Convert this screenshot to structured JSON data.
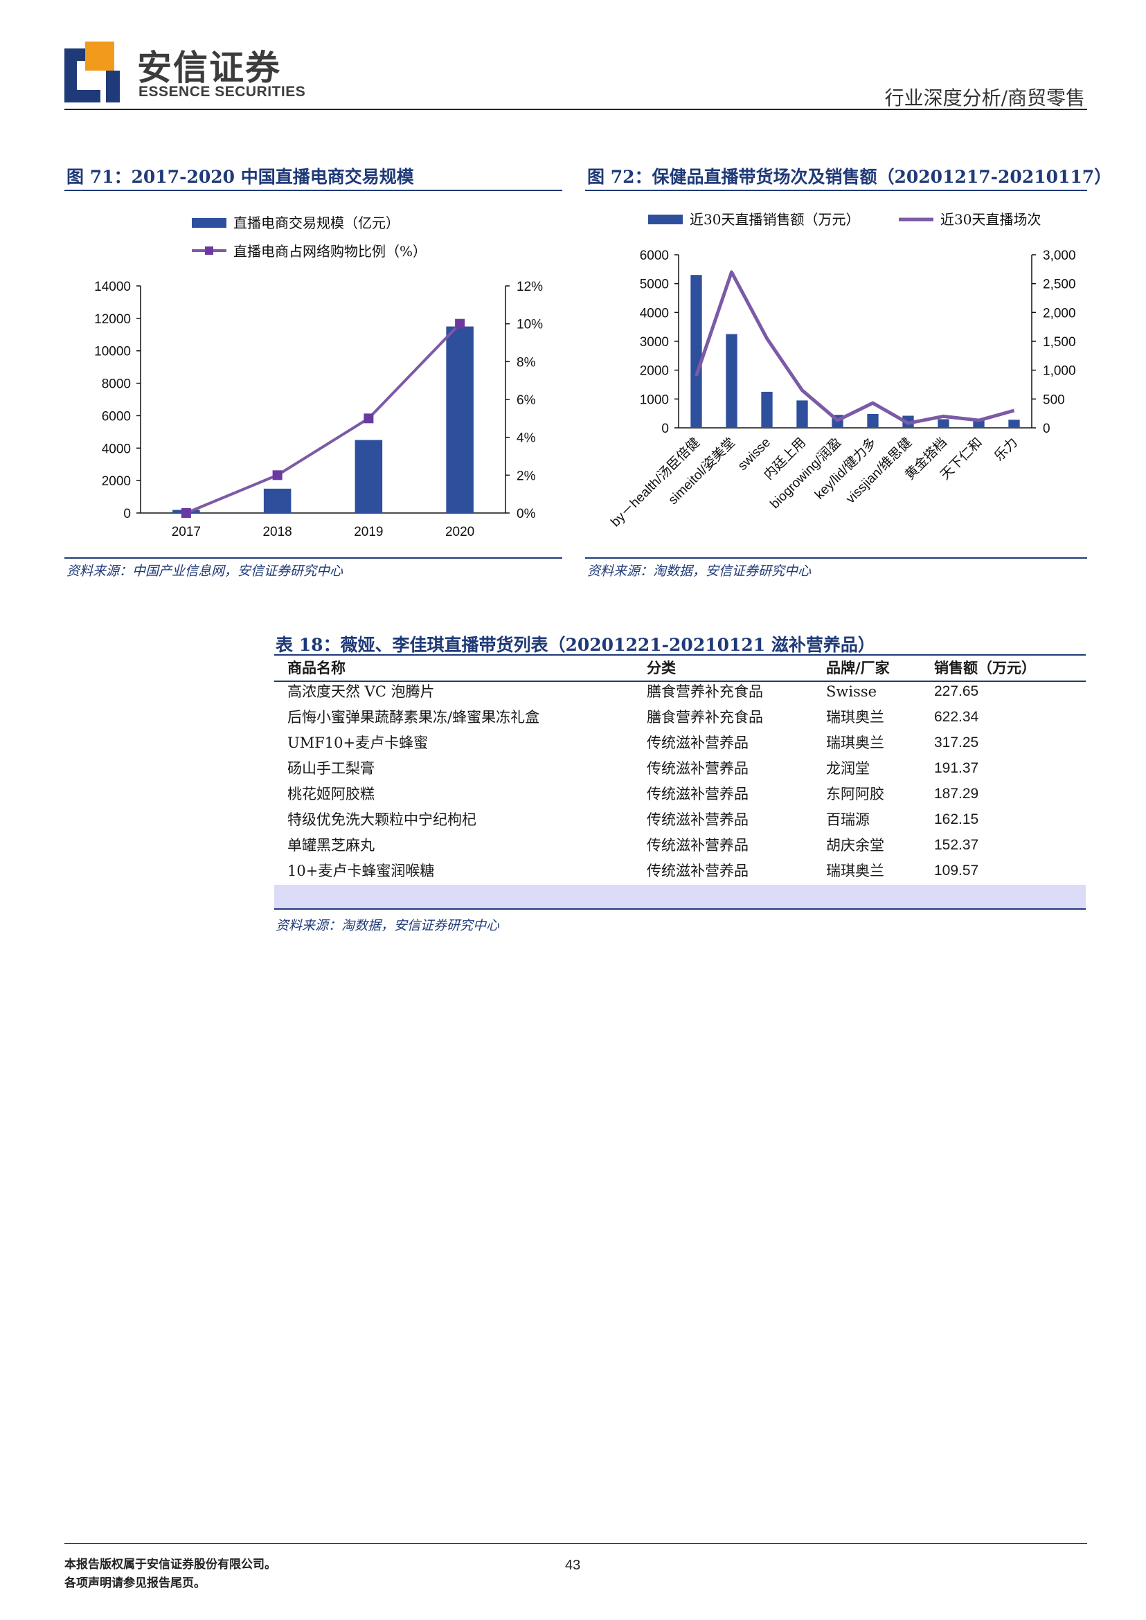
{
  "header": {
    "brand_cn": "安信证券",
    "brand_en": "ESSENCE SECURITIES",
    "category": "行业深度分析/商贸零售",
    "colors": {
      "logo_blue": "#1f3a78",
      "logo_orange": "#f29a1b"
    }
  },
  "figure71": {
    "title": "图 71：2017-2020 中国直播电商交易规模",
    "source": "资料来源：中国产业信息网，安信证券研究中心"
  },
  "figure72": {
    "title": "图 72：保健品直播带货场次及销售额（20201217-20210117）",
    "source": "资料来源：淘数据，安信证券研究中心"
  },
  "table18": {
    "title": "表 18：薇娅、李佳琪直播带货列表（20201221-20210121 滋补营养品）",
    "headers": [
      "商品名称",
      "分类",
      "品牌/厂家",
      "销售额（万元）"
    ],
    "rows": [
      [
        "高浓度天然 VC 泡腾片",
        "膳食营养补充食品",
        "Swisse",
        "227.65"
      ],
      [
        "后悔小蜜弹果蔬酵素果冻/蜂蜜果冻礼盒",
        "膳食营养补充食品",
        "瑞琪奥兰",
        "622.34"
      ],
      [
        "UMF10+麦卢卡蜂蜜",
        "传统滋补营养品",
        "瑞琪奥兰",
        "317.25"
      ],
      [
        "砀山手工梨膏",
        "传统滋补营养品",
        "龙润堂",
        "191.37"
      ],
      [
        "桃花姬阿胶糕",
        "传统滋补营养品",
        "东阿阿胶",
        "187.29"
      ],
      [
        "特级优免洗大颗粒中宁纪枸杞",
        "传统滋补营养品",
        "百瑞源",
        "162.15"
      ],
      [
        "单罐黑芝麻丸",
        "传统滋补营养品",
        "胡庆余堂",
        "152.37"
      ],
      [
        "10+麦卢卡蜂蜜润喉糖",
        "传统滋补营养品",
        "瑞琪奥兰",
        "109.57"
      ]
    ],
    "source": "资料来源：淘数据，安信证券研究中心",
    "colors": {
      "rule": "#1f3a78",
      "total_band": "#dcdcf8"
    }
  },
  "footer": {
    "line1": "本报告版权属于安信证券股份有限公司。",
    "line2": "各项声明请参见报告尾页。",
    "page": "43"
  },
  "chart_data": [
    {
      "type": "bar+line",
      "categories": [
        "2017",
        "2018",
        "2019",
        "2020"
      ],
      "series": [
        {
          "name": "直播电商交易规模（亿元）",
          "type": "bar",
          "axis": "left",
          "values": [
            190,
            1500,
            4500,
            11500
          ],
          "color": "#2e4f9c"
        },
        {
          "name": "直播电商占网络购物比例（%）",
          "type": "line",
          "axis": "right",
          "values": [
            0.0,
            2.0,
            5.0,
            10.0
          ],
          "color": "#7b5aa6"
        }
      ],
      "y_left": {
        "ticks": [
          "0",
          "2000",
          "4000",
          "6000",
          "8000",
          "10000",
          "12000",
          "14000"
        ],
        "min": 0,
        "max": 14000
      },
      "y_right": {
        "ticks": [
          "0%",
          "2%",
          "4%",
          "6%",
          "8%",
          "10%",
          "12%"
        ],
        "min": 0,
        "max": 12
      },
      "grid": false,
      "legend_position": "top"
    },
    {
      "type": "bar+line",
      "categories": [
        "by－health/汤臣倍健",
        "simeitol/姿美堂",
        "swisse",
        "内廷上用",
        "biogrowing/润盈",
        "key/lid/健力多",
        "vissjian/维思健",
        "黄金搭档",
        "天下仁和",
        "乐力"
      ],
      "series": [
        {
          "name": "近30天直播销售额（万元）",
          "type": "bar",
          "axis": "left",
          "values": [
            5300,
            3250,
            1250,
            950,
            450,
            480,
            420,
            300,
            260,
            280
          ],
          "color": "#2e4f9c"
        },
        {
          "name": "近30天直播场次",
          "type": "line",
          "axis": "right",
          "values": [
            900,
            2700,
            1550,
            650,
            130,
            430,
            80,
            200,
            130,
            300
          ],
          "color": "#7b5aa6"
        }
      ],
      "y_left": {
        "ticks": [
          "0",
          "1000",
          "2000",
          "3000",
          "4000",
          "5000",
          "6000"
        ],
        "min": 0,
        "max": 6000
      },
      "y_right": {
        "ticks": [
          "0",
          "500",
          "1,000",
          "1,500",
          "2,000",
          "2,500",
          "3,000"
        ],
        "min": 0,
        "max": 3000
      },
      "grid": false,
      "legend_position": "top"
    }
  ]
}
